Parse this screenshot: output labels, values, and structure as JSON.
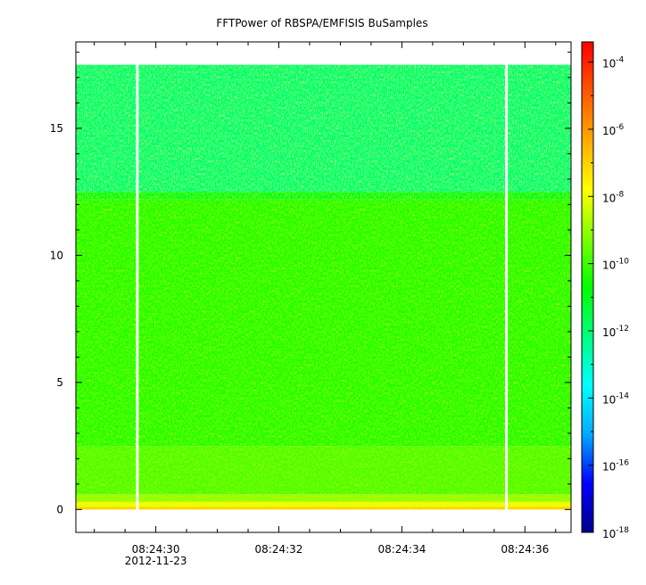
{
  "chart_data": {
    "type": "heatmap",
    "title": "FFTPower of RBSPA/EMFISIS  BuSamples",
    "xlabel": "",
    "ylabel": "",
    "x_ticks": [
      "08:24:30",
      "08:24:32",
      "08:24:34",
      "08:24:36"
    ],
    "x_date_label": "2012-11-23",
    "x_range_seconds": [
      28.7,
      36.75
    ],
    "x_major_tick_seconds": [
      30,
      32,
      34,
      36
    ],
    "y_ticks": [
      "0",
      "5",
      "10",
      "15"
    ],
    "ylim": [
      -0.9,
      18.4
    ],
    "y_tick_values": [
      0,
      5,
      10,
      15
    ],
    "colorbar": {
      "scale": "log",
      "min_exponent": -18,
      "max_exponent": -3.4,
      "tick_base": "10",
      "tick_exponents": [
        "-4",
        "-6",
        "-8",
        "-10",
        "-12",
        "-14",
        "-16",
        "-18"
      ],
      "colormap": [
        "#00008b",
        "#0000ff",
        "#00aaff",
        "#00ffff",
        "#00ff80",
        "#00ff00",
        "#80ff00",
        "#ffff00",
        "#ffaa00",
        "#ff5500",
        "#ff0000"
      ]
    },
    "data_extent": {
      "y_min": 0,
      "y_max": 17.5
    },
    "gaps_seconds": [
      29.7,
      35.7
    ],
    "power_bands": [
      {
        "y_from": 0.0,
        "y_to": 0.1,
        "log_power": -7.0
      },
      {
        "y_from": 0.1,
        "y_to": 0.3,
        "log_power": -8.0
      },
      {
        "y_from": 0.3,
        "y_to": 0.6,
        "log_power": -9.0
      },
      {
        "y_from": 0.6,
        "y_to": 2.5,
        "log_power": -9.8
      },
      {
        "y_from": 2.5,
        "y_to": 12.2,
        "log_power": -10.3
      },
      {
        "y_from": 12.2,
        "y_to": 12.5,
        "log_power": -11.0
      },
      {
        "y_from": 12.5,
        "y_to": 17.5,
        "log_power": -12.0
      }
    ],
    "grid": false
  }
}
